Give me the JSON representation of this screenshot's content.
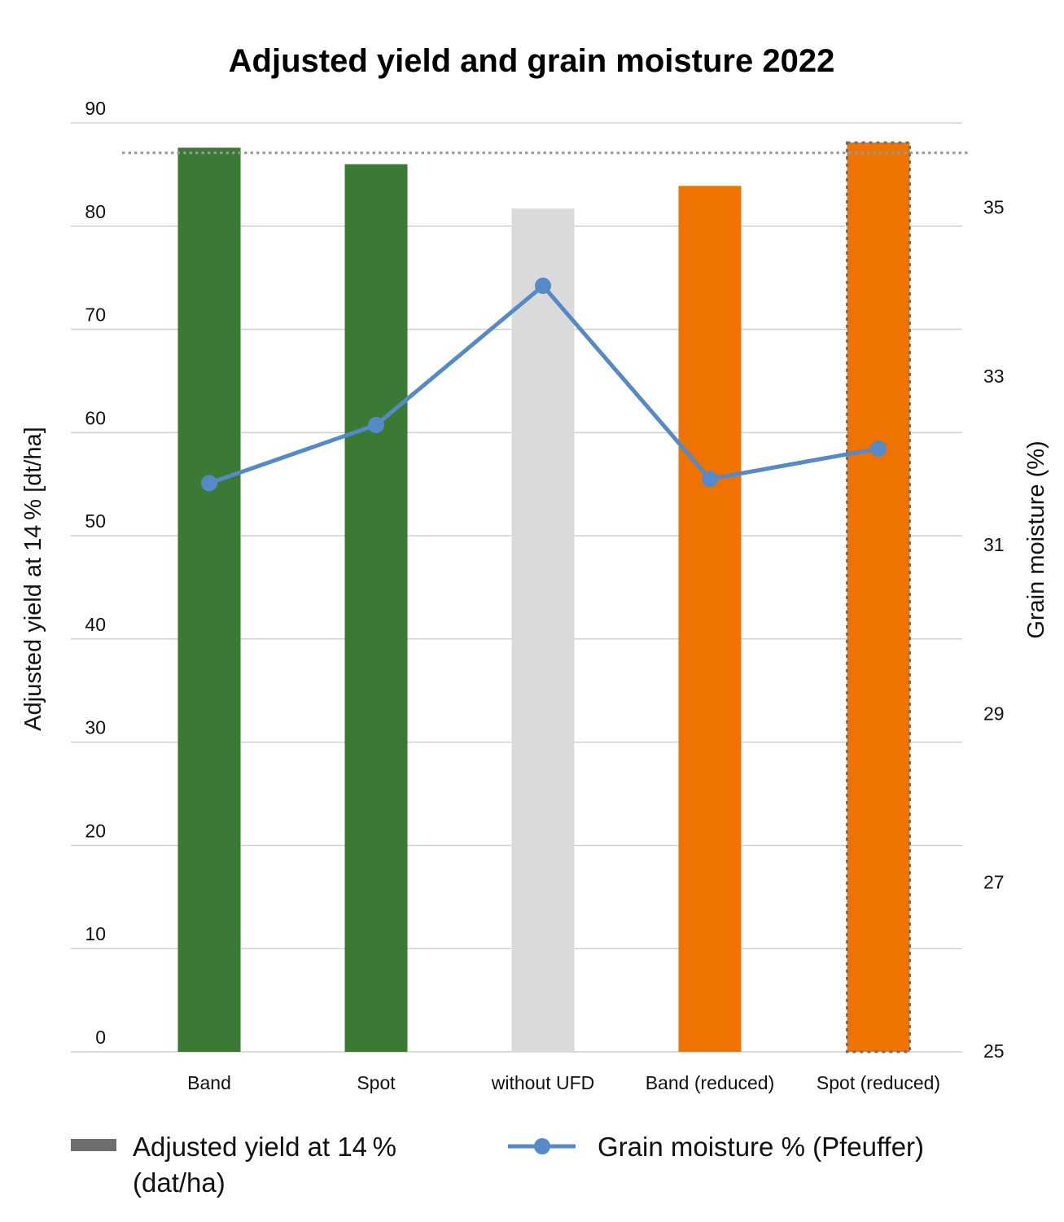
{
  "chart_data": {
    "type": "bar",
    "title": "Adjusted yield and grain moisture 2022",
    "categories": [
      "Band",
      "Spot",
      "without UFD",
      "Band (reduced)",
      "Spot (reduced)"
    ],
    "xlabel": "",
    "ylabel": "Adjusted yield at 14 % [dt/ha]",
    "y2label": "Grain moisture (%)",
    "ylim": [
      0,
      90
    ],
    "y_ticks": [
      0,
      10,
      20,
      30,
      40,
      50,
      60,
      70,
      80,
      90
    ],
    "y2lim": [
      25,
      36
    ],
    "y2_ticks": [
      25,
      27,
      29,
      31,
      33,
      35
    ],
    "grid": true,
    "reference_line": {
      "value": 87.1,
      "style": "dotted",
      "color": "#999999"
    },
    "series": [
      {
        "name": "Adjusted yield at 14 % (dat/ha)",
        "type": "bar",
        "axis": "left",
        "values": [
          87.6,
          86.0,
          81.7,
          83.9,
          88.1
        ],
        "colors": [
          "#3a7a34",
          "#3a7a34",
          "#d9dad9",
          "#ef7300",
          "#ef7300"
        ],
        "highlighted": [
          false,
          false,
          false,
          false,
          true
        ]
      },
      {
        "name": "Grain moisture % (Pfeuffer)",
        "type": "line",
        "axis": "right",
        "values": [
          31.73,
          32.42,
          34.07,
          31.78,
          32.14
        ],
        "color": "#5589c8"
      }
    ],
    "legend": {
      "position": "bottom",
      "items": [
        {
          "label_line1": "Adjusted yield at 14 %",
          "label_line2": "(dat/ha)",
          "swatch": "bar",
          "color": "#6e6e6e"
        },
        {
          "label_line1": "Grain moisture % (Pfeuffer)",
          "swatch": "line-marker",
          "color": "#5589c8"
        }
      ]
    }
  }
}
